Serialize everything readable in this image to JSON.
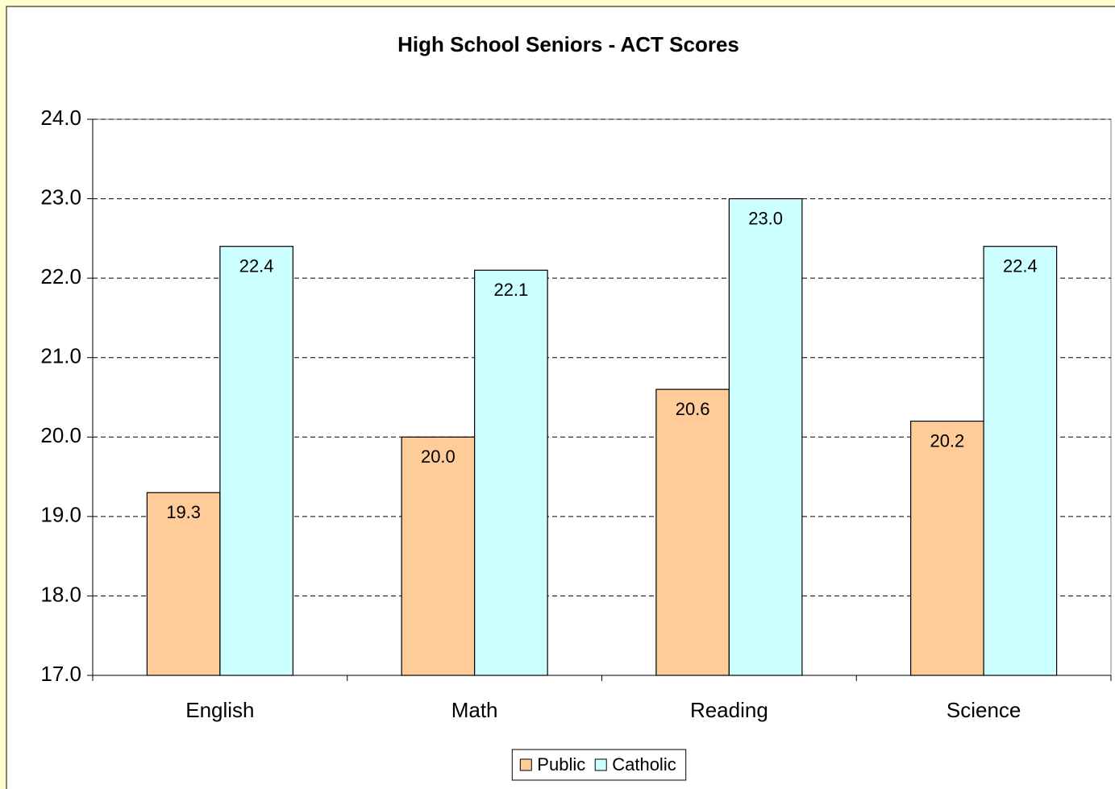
{
  "chart_data": {
    "type": "bar",
    "title": "High School Seniors - ACT Scores",
    "categories": [
      "English",
      "Math",
      "Reading",
      "Science"
    ],
    "series": [
      {
        "name": "Public",
        "color": "#ffcc99",
        "values": [
          19.3,
          20.0,
          20.6,
          20.2
        ],
        "value_labels": [
          "19.3",
          "20.0",
          "20.6",
          "20.2"
        ]
      },
      {
        "name": "Catholic",
        "color": "#ccffff",
        "values": [
          22.4,
          22.1,
          23.0,
          22.4
        ],
        "value_labels": [
          "22.4",
          "22.1",
          "23.0",
          "22.4"
        ]
      }
    ],
    "ylim": [
      17,
      24
    ],
    "yticks": [
      {
        "value": 17,
        "label": "17.0"
      },
      {
        "value": 18,
        "label": "18.0"
      },
      {
        "value": 19,
        "label": "19.0"
      },
      {
        "value": 20,
        "label": "20.0"
      },
      {
        "value": 21,
        "label": "21.0"
      },
      {
        "value": 22,
        "label": "22.0"
      },
      {
        "value": 23,
        "label": "23.0"
      },
      {
        "value": 24,
        "label": "24.0"
      }
    ],
    "grid": true,
    "legend": "bottom"
  }
}
